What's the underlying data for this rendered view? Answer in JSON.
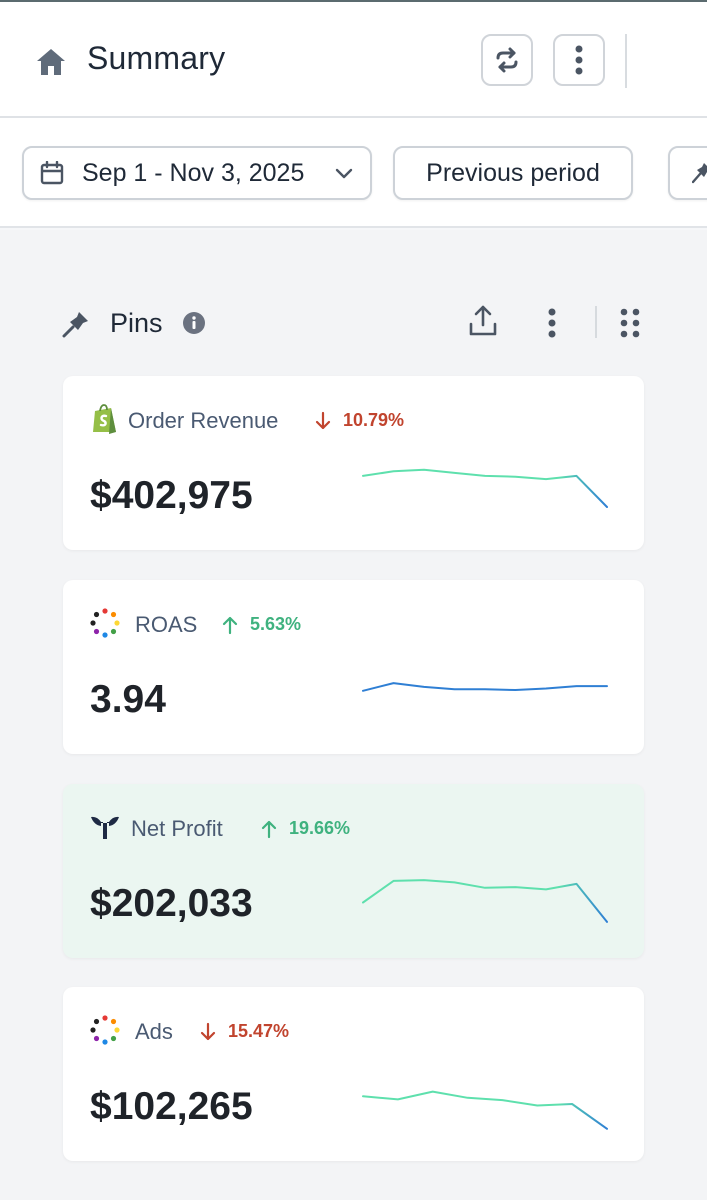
{
  "header": {
    "title": "Summary",
    "home_icon": "home-icon",
    "refresh_icon": "refresh-icon",
    "more_icon": "more-vertical-icon"
  },
  "filters": {
    "date_range": "Sep 1 - Nov 3, 2025",
    "compare": "Previous period"
  },
  "pins": {
    "title": "Pins"
  },
  "colors": {
    "trend_down": "#c1442e",
    "trend_up": "#3fb27f",
    "spark_green": "#5ee0ad",
    "spark_blue": "#2f7fd4",
    "highlight_bg": "#ebf6f1"
  },
  "metrics": [
    {
      "label": "Order Revenue",
      "change": "10.79%",
      "direction": "down",
      "value": "$402,975",
      "icon": "shopify-icon",
      "spark": [
        62,
        68,
        70,
        66,
        62,
        61,
        58,
        62,
        22
      ],
      "spark_style": "green"
    },
    {
      "label": "ROAS",
      "change": "5.63%",
      "direction": "up",
      "value": "3.94",
      "icon": "multicolor-dots-icon",
      "spark": [
        48,
        58,
        53,
        50,
        50,
        49,
        51,
        54,
        54
      ],
      "spark_style": "blue"
    },
    {
      "label": "Net Profit",
      "change": "19.66%",
      "direction": "up",
      "value": "$202,033",
      "icon": "triple-whale-icon",
      "spark": [
        38,
        66,
        67,
        64,
        57,
        58,
        55,
        62,
        13
      ],
      "spark_style": "green"
    },
    {
      "label": "Ads",
      "change": "15.47%",
      "direction": "down",
      "value": "$102,265",
      "icon": "multicolor-dots-icon",
      "spark": [
        50,
        46,
        56,
        48,
        45,
        38,
        40,
        8
      ],
      "spark_style": "green"
    }
  ]
}
